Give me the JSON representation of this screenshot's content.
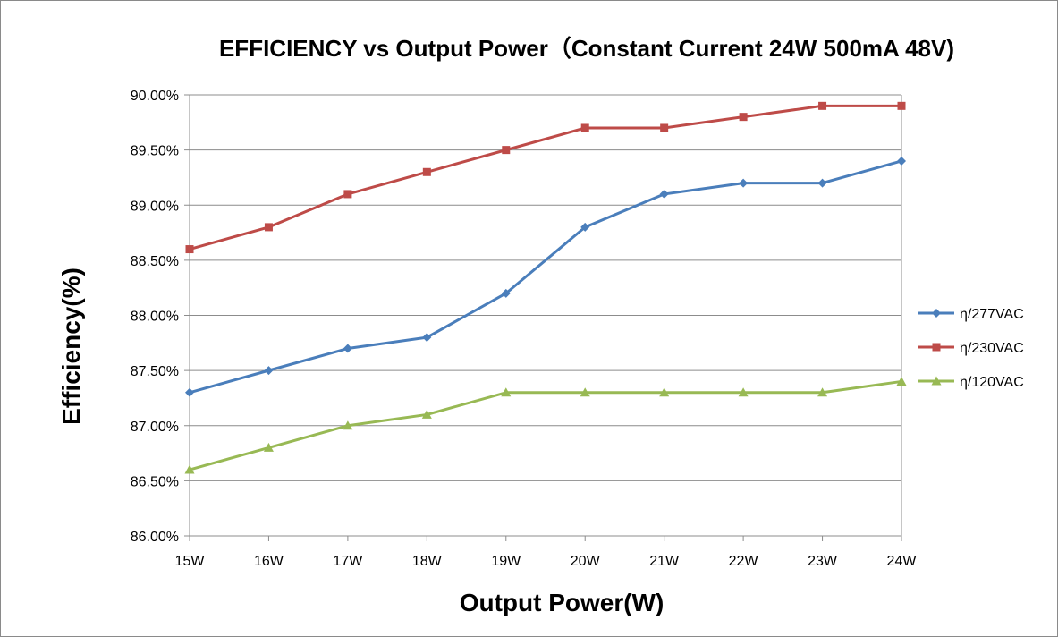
{
  "chart_data": {
    "type": "line",
    "title": "EFFICIENCY vs Output Power（Constant Current 24W 500mA 48V)",
    "xlabel": "Output Power(W)",
    "ylabel": "Efficiency(%)",
    "categories": [
      "15W",
      "16W",
      "17W",
      "18W",
      "19W",
      "20W",
      "21W",
      "22W",
      "23W",
      "24W"
    ],
    "ylim": [
      86.0,
      90.0
    ],
    "ytick_step": 0.5,
    "ytick_labels": [
      "86.00%",
      "86.50%",
      "87.00%",
      "87.50%",
      "88.00%",
      "88.50%",
      "89.00%",
      "89.50%",
      "90.00%"
    ],
    "grid": true,
    "legend_position": "right",
    "series": [
      {
        "name": "η/277VAC",
        "color": "#4a7ebb",
        "marker": "diamond",
        "values": [
          87.3,
          87.5,
          87.7,
          87.8,
          88.2,
          88.8,
          89.1,
          89.2,
          89.2,
          89.4
        ]
      },
      {
        "name": "η/230VAC",
        "color": "#be4b48",
        "marker": "square",
        "values": [
          88.6,
          88.8,
          89.1,
          89.3,
          89.5,
          89.7,
          89.7,
          89.8,
          89.9,
          89.9
        ]
      },
      {
        "name": "η/120VAC",
        "color": "#98b954",
        "marker": "triangle",
        "values": [
          86.6,
          86.8,
          87.0,
          87.1,
          87.3,
          87.3,
          87.3,
          87.3,
          87.3,
          87.4
        ]
      }
    ]
  }
}
